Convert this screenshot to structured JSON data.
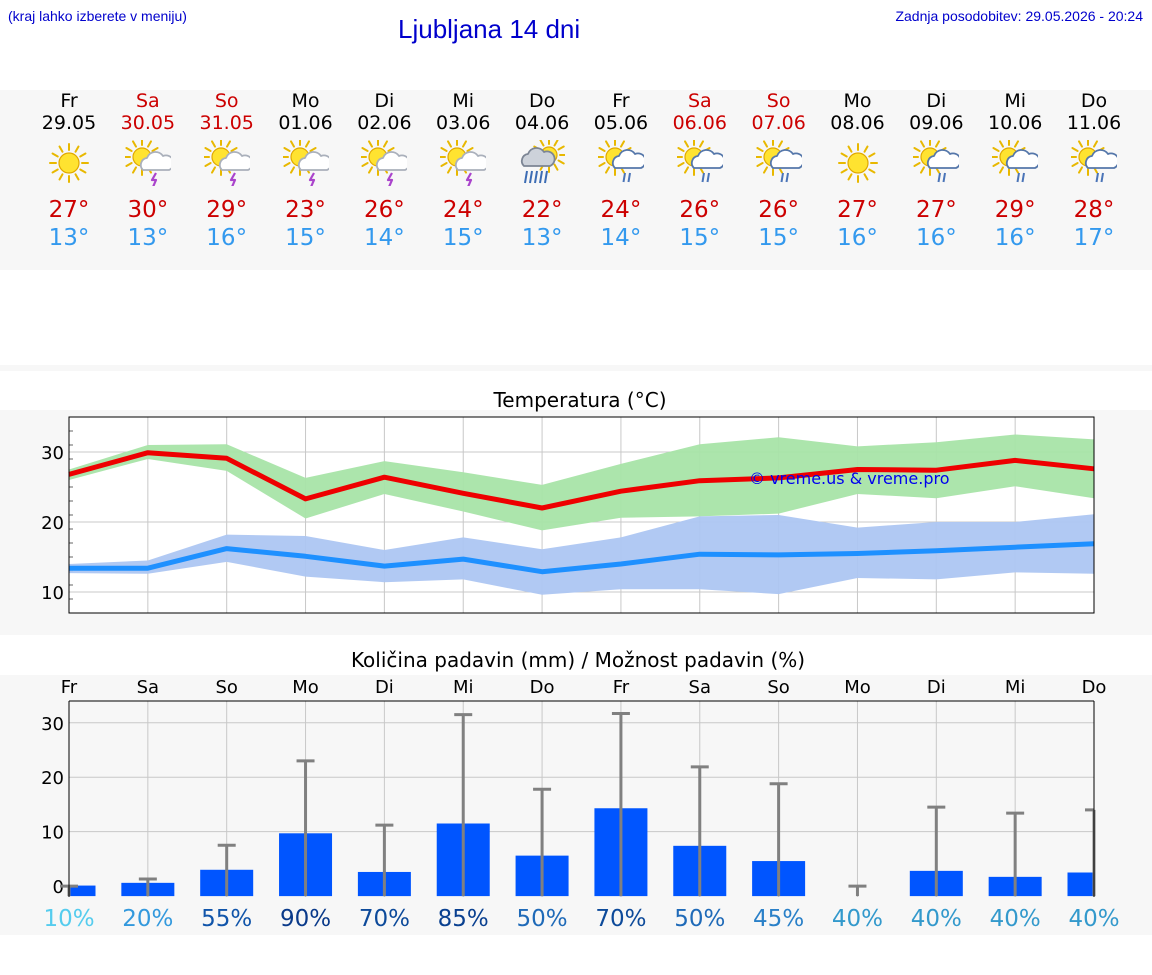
{
  "header": {
    "menu_hint": "(kraj lahko izberete v meniju)",
    "title": "Ljubljana 14 dni",
    "last_update": "Zadnja posodobitev: 29.05.2026 - 20:24"
  },
  "colors": {
    "link": "#0000cc",
    "weekend_day": "#cc0000",
    "weekday": "#000000",
    "tmax": "#cc0000",
    "tmin": "#3399ee",
    "max_line": "#ee0000",
    "max_band": "#a8e4a8",
    "min_line": "#1e90ff",
    "min_band": "#adc6f2",
    "rain_bar": "#0055ff",
    "error_bar": "#808080"
  },
  "days": [
    {
      "name": "Fr",
      "date": "29.05",
      "weekend": false,
      "icon": "sun-icon",
      "tmax": "27°",
      "tmin": "13°"
    },
    {
      "name": "Sa",
      "date": "30.05",
      "weekend": true,
      "icon": "sun-cloud-thunder-icon",
      "tmax": "30°",
      "tmin": "13°"
    },
    {
      "name": "So",
      "date": "31.05",
      "weekend": true,
      "icon": "sun-cloud-thunder-icon",
      "tmax": "29°",
      "tmin": "16°"
    },
    {
      "name": "Mo",
      "date": "01.06",
      "weekend": false,
      "icon": "sun-cloud-thunder-icon",
      "tmax": "23°",
      "tmin": "15°"
    },
    {
      "name": "Di",
      "date": "02.06",
      "weekend": false,
      "icon": "sun-cloud-thunder-icon",
      "tmax": "26°",
      "tmin": "14°"
    },
    {
      "name": "Mi",
      "date": "03.06",
      "weekend": false,
      "icon": "sun-cloud-thunder-icon",
      "tmax": "24°",
      "tmin": "15°"
    },
    {
      "name": "Do",
      "date": "04.06",
      "weekend": false,
      "icon": "cloud-heavy-rain-icon",
      "tmax": "22°",
      "tmin": "13°"
    },
    {
      "name": "Fr",
      "date": "05.06",
      "weekend": false,
      "icon": "sun-cloud-rain-icon",
      "tmax": "24°",
      "tmin": "14°"
    },
    {
      "name": "Sa",
      "date": "06.06",
      "weekend": true,
      "icon": "sun-cloud-rain-icon",
      "tmax": "26°",
      "tmin": "15°"
    },
    {
      "name": "So",
      "date": "07.06",
      "weekend": true,
      "icon": "sun-cloud-rain-icon",
      "tmax": "26°",
      "tmin": "15°"
    },
    {
      "name": "Mo",
      "date": "08.06",
      "weekend": false,
      "icon": "sun-icon",
      "tmax": "27°",
      "tmin": "16°"
    },
    {
      "name": "Di",
      "date": "09.06",
      "weekend": false,
      "icon": "sun-cloud-rain-icon",
      "tmax": "27°",
      "tmin": "16°"
    },
    {
      "name": "Mi",
      "date": "10.06",
      "weekend": false,
      "icon": "sun-cloud-rain-icon",
      "tmax": "29°",
      "tmin": "16°"
    },
    {
      "name": "Do",
      "date": "11.06",
      "weekend": false,
      "icon": "sun-cloud-rain-icon",
      "tmax": "28°",
      "tmin": "17°"
    }
  ],
  "chart_data": [
    {
      "type": "line",
      "title": "Temperatura (°C)",
      "x": [
        "29.05",
        "30.05",
        "31.05",
        "01.06",
        "02.06",
        "03.06",
        "04.06",
        "05.06",
        "06.06",
        "07.06",
        "08.06",
        "09.06",
        "10.06",
        "11.06"
      ],
      "ylim": [
        7,
        35
      ],
      "yticks": [
        10,
        20,
        30
      ],
      "grid": true,
      "watermark": "© vreme.us & vreme.pro",
      "series": [
        {
          "values": [
            26.8,
            29.9,
            29.1,
            23.3,
            26.4,
            24.1,
            22.0,
            24.4,
            25.9,
            26.3,
            27.5,
            27.4,
            28.8,
            27.6
          ],
          "band_low": [
            26.0,
            29.0,
            27.3,
            20.5,
            24.0,
            21.5,
            18.8,
            20.6,
            20.8,
            21.2,
            24.0,
            23.4,
            25.1,
            23.4
          ],
          "band_high": [
            27.5,
            31.0,
            31.1,
            26.3,
            28.7,
            27.1,
            25.3,
            28.3,
            31.1,
            32.1,
            30.8,
            31.4,
            32.5,
            31.8
          ]
        },
        {
          "values": [
            13.4,
            13.4,
            16.2,
            15.1,
            13.7,
            14.7,
            12.9,
            14.0,
            15.4,
            15.3,
            15.5,
            15.9,
            16.4,
            16.9
          ],
          "band_low": [
            12.7,
            12.6,
            14.3,
            12.2,
            11.4,
            11.8,
            9.6,
            10.4,
            10.4,
            9.7,
            12.0,
            11.8,
            12.8,
            12.6
          ],
          "band_high": [
            14.0,
            14.5,
            18.2,
            18.0,
            16.0,
            17.8,
            16.1,
            17.8,
            20.8,
            21.0,
            19.2,
            20.0,
            20.0,
            21.1
          ]
        }
      ]
    },
    {
      "type": "bar",
      "title": "Količina padavin (mm) / Možnost padavin (%)",
      "categories": [
        "Fr",
        "Sa",
        "So",
        "Mo",
        "Di",
        "Mi",
        "Do",
        "Fr",
        "Sa",
        "So",
        "Mo",
        "Di",
        "Mi",
        "Do"
      ],
      "values": [
        0.1,
        0.6,
        3.0,
        9.7,
        2.6,
        11.5,
        5.6,
        14.3,
        7.4,
        4.6,
        0.0,
        2.8,
        1.7,
        2.5
      ],
      "error_high": [
        0.0,
        1.3,
        7.5,
        23.0,
        11.2,
        31.5,
        17.8,
        31.7,
        21.9,
        18.8,
        0.0,
        14.5,
        13.4,
        14.0
      ],
      "probability": [
        "10%",
        "20%",
        "55%",
        "90%",
        "70%",
        "85%",
        "50%",
        "70%",
        "50%",
        "45%",
        "40%",
        "40%",
        "40%",
        "40%"
      ],
      "probability_colors": [
        "#55ccee",
        "#3399dd",
        "#1155aa",
        "#0a3a8a",
        "#0d4a9a",
        "#0a4090",
        "#1f6ab8",
        "#0d4a9a",
        "#1f6ab8",
        "#2a80c8",
        "#3399cc",
        "#3399cc",
        "#3399cc",
        "#3399cc"
      ],
      "ylim": [
        -2,
        34
      ],
      "yticks": [
        0,
        10,
        20,
        30
      ],
      "grid": true
    }
  ]
}
